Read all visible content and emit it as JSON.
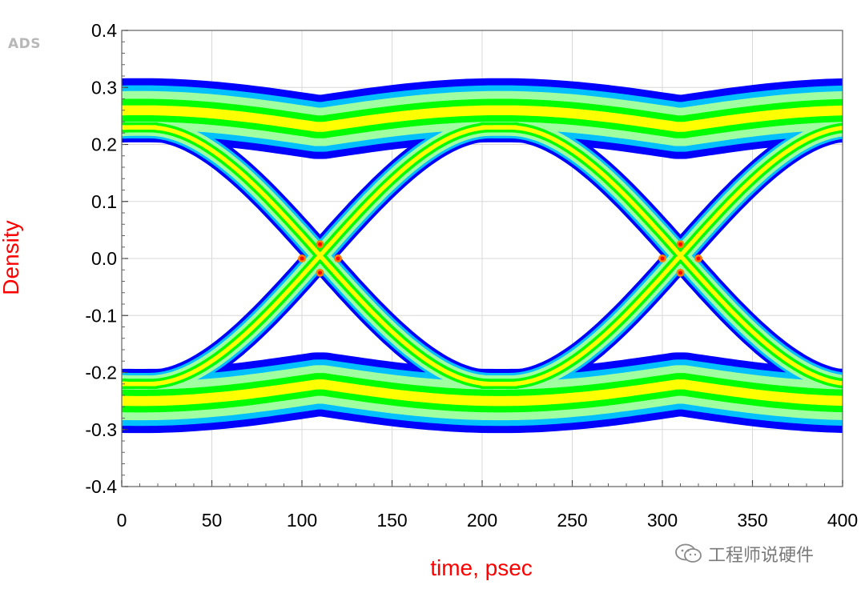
{
  "logo": "ADS",
  "watermark": {
    "text": "工程师说硬件",
    "icon": "wechat-icon"
  },
  "chart_data": {
    "type": "eye-diagram",
    "xlabel": "time, psec",
    "ylabel": "Density",
    "xlim": [
      0,
      400
    ],
    "ylim": [
      -0.4,
      0.4
    ],
    "x_ticks": [
      0,
      50,
      100,
      150,
      200,
      250,
      300,
      350,
      400
    ],
    "y_ticks": [
      0.4,
      0.3,
      0.2,
      0.1,
      0.0,
      -0.1,
      -0.2,
      -0.3,
      -0.4
    ],
    "x_tick_labels": [
      "0",
      "50",
      "100",
      "150",
      "200",
      "250",
      "300",
      "350",
      "400"
    ],
    "y_tick_labels": [
      "0.4",
      "0.3",
      "0.2",
      "0.1",
      "0.0",
      "-0.1",
      "-0.2",
      "-0.3",
      "-0.4"
    ],
    "unit_interval_ps": 200,
    "crossing_times_ps": [
      110,
      310
    ],
    "crossing_level": 0.0,
    "high_level": 0.23,
    "low_level": -0.22,
    "eye_opening": {
      "top": 0.18,
      "bottom": -0.16
    },
    "density_colors": [
      "#0000ff",
      "#00c0ff",
      "#a0ffa0",
      "#00ff00",
      "#ffff00",
      "#ff8000",
      "#ff0000"
    ],
    "grid": true,
    "axis_label_color": "#ff0000"
  }
}
